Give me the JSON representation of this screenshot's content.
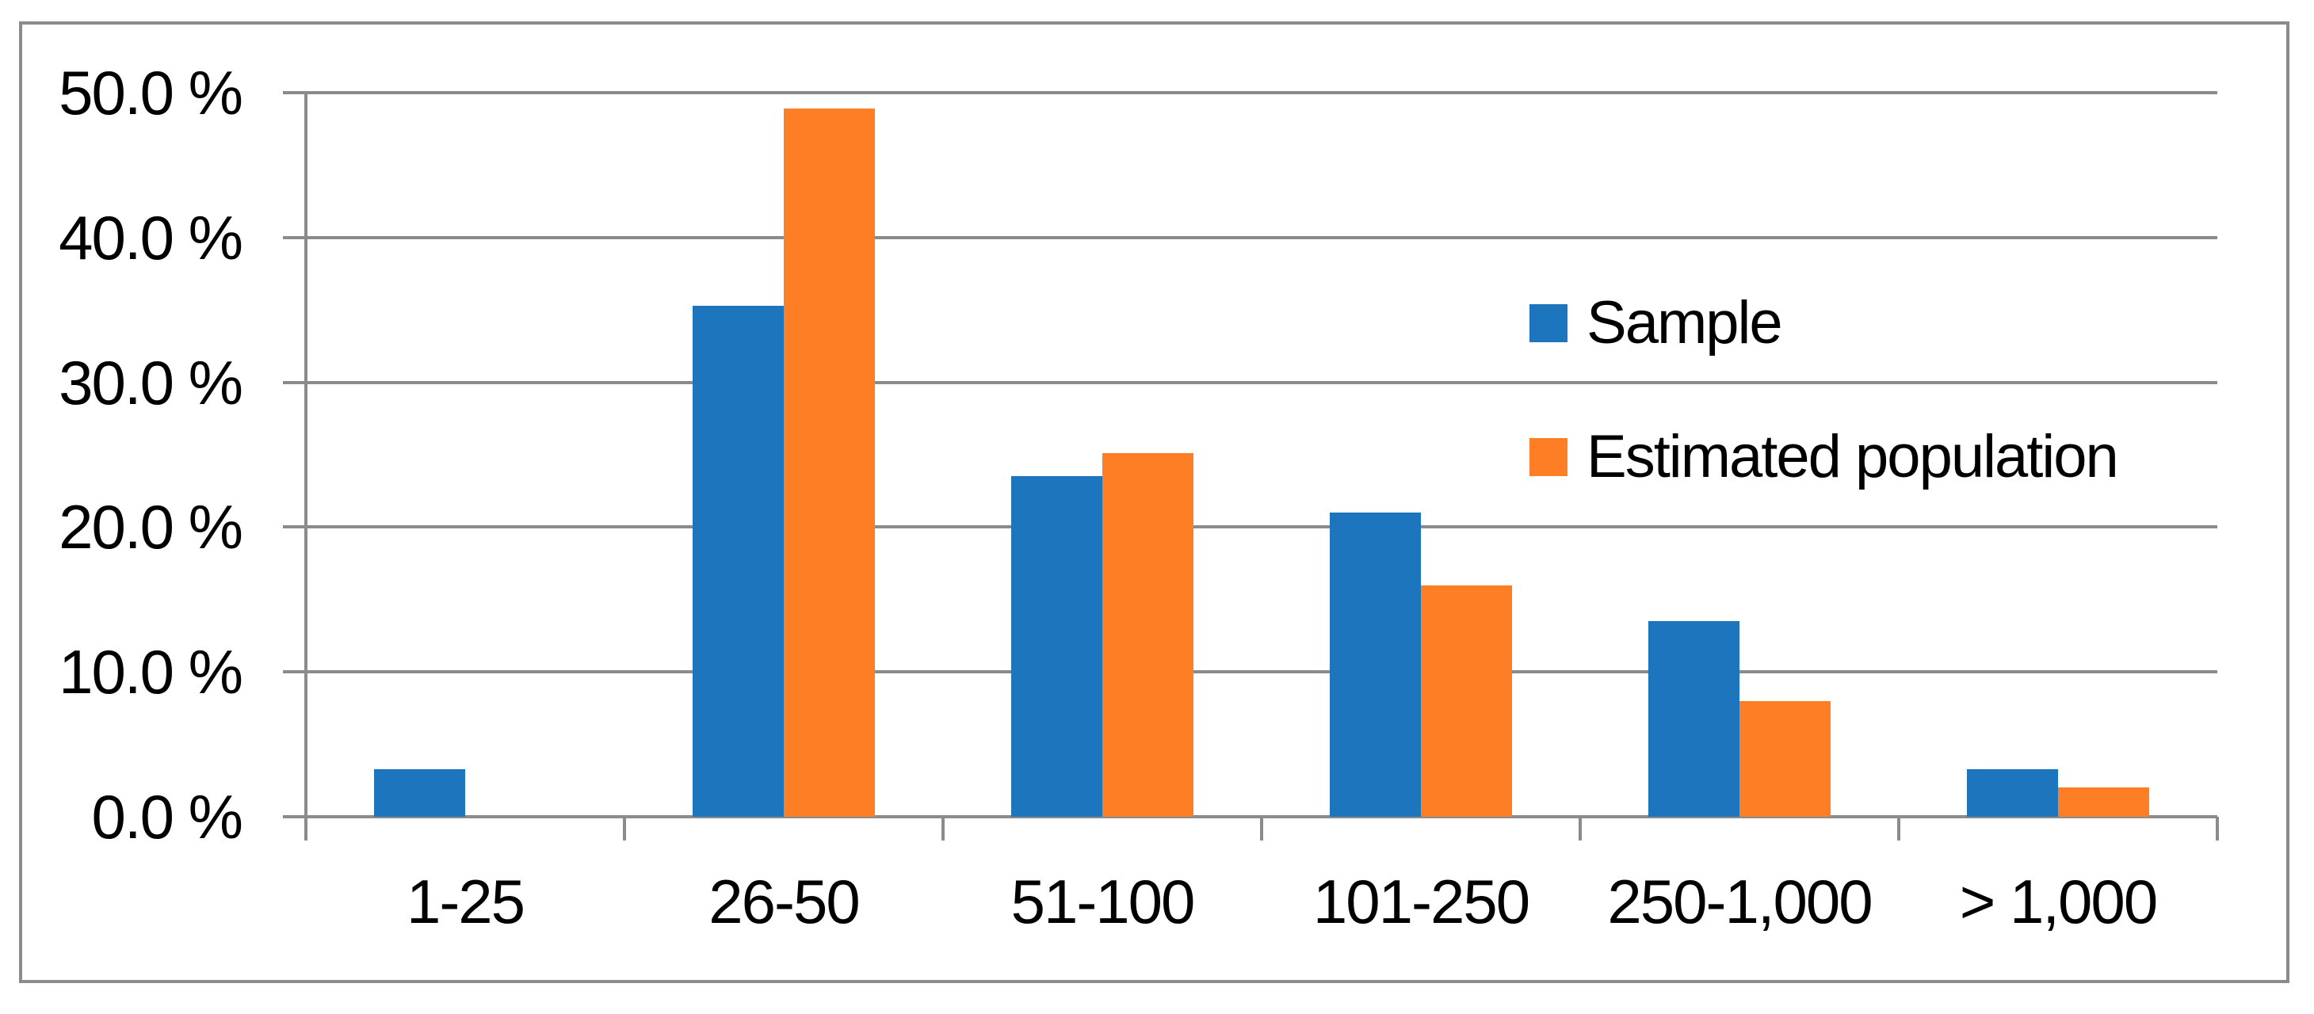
{
  "chart_data": {
    "type": "bar",
    "title": "",
    "xlabel": "",
    "ylabel": "",
    "categories": [
      "1-25",
      "26-50",
      "51-100",
      "101-250",
      "250-1,000",
      "> 1,000"
    ],
    "series": [
      {
        "name": "Sample",
        "color": "#1C75BD",
        "values": [
          3.3,
          35.3,
          23.5,
          21.0,
          13.5,
          3.3
        ]
      },
      {
        "name": "Estimated population",
        "color": "#FE7E26",
        "values": [
          0.0,
          48.9,
          25.1,
          16.0,
          8.0,
          2.0
        ]
      }
    ],
    "ylim": [
      0,
      50
    ],
    "ytick_step": 10,
    "ytick_labels": [
      "0.0 %",
      "10.0 %",
      "20.0 %",
      "30.0 %",
      "40.0 %",
      "50.0 %"
    ],
    "grid": true,
    "legend_position": "inside-upper-right"
  },
  "colors": {
    "sample_blue": "#1C75BD",
    "population_orange": "#FE7E26",
    "gridline_gray": "#8B8B8B",
    "border_gray": "#8B8B8B",
    "text_black": "#000000",
    "background": "#FFFFFF"
  }
}
